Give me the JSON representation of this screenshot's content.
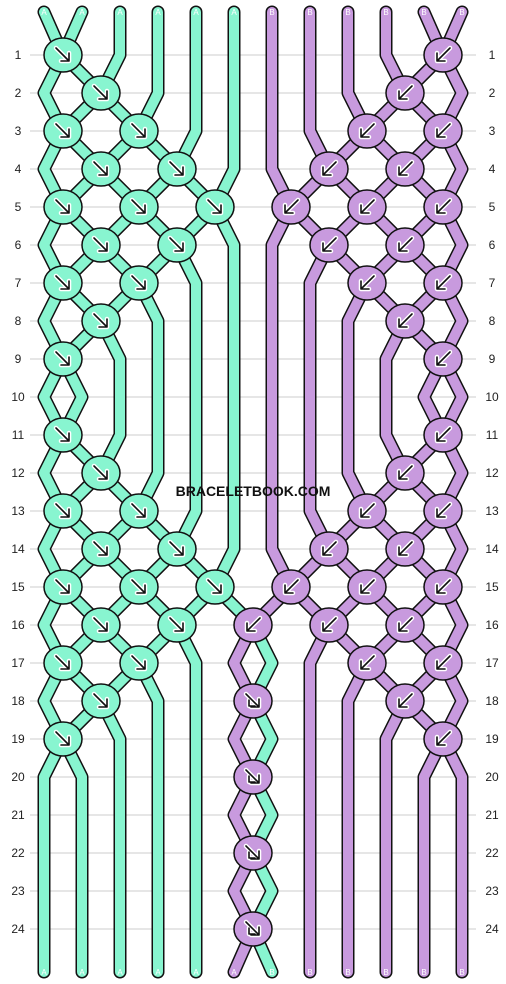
{
  "watermark": "BRACELETBOOK.COM",
  "row_labels": [
    "1",
    "2",
    "3",
    "4",
    "5",
    "6",
    "7",
    "8",
    "9",
    "10",
    "11",
    "12",
    "13",
    "14",
    "15",
    "16",
    "17",
    "18",
    "19",
    "20",
    "21",
    "22",
    "23",
    "24"
  ],
  "strings": {
    "top": [
      "A",
      "A",
      "A",
      "A",
      "A",
      "A",
      "B",
      "B",
      "B",
      "B",
      "B",
      "B"
    ],
    "bottom": [
      "A",
      "A",
      "A",
      "A",
      "A",
      "A",
      "B",
      "B",
      "B",
      "B",
      "B",
      "B"
    ]
  },
  "colors": {
    "A": "#88f5d0",
    "B": "#c89ade",
    "outline": "#111111",
    "gridline": "#cccccc"
  },
  "knot_types": {
    "f": "forward",
    "b": "backward",
    "fb": "forward-backward"
  },
  "knots": [
    {
      "row": 1,
      "pos": 0,
      "color": "A",
      "type": "f"
    },
    {
      "row": 1,
      "pos": 10,
      "color": "B",
      "type": "b"
    },
    {
      "row": 2,
      "pos": 1,
      "color": "A",
      "type": "f"
    },
    {
      "row": 2,
      "pos": 9,
      "color": "B",
      "type": "b"
    },
    {
      "row": 3,
      "pos": 0,
      "color": "A",
      "type": "f"
    },
    {
      "row": 3,
      "pos": 2,
      "color": "A",
      "type": "f"
    },
    {
      "row": 3,
      "pos": 8,
      "color": "B",
      "type": "b"
    },
    {
      "row": 3,
      "pos": 10,
      "color": "B",
      "type": "b"
    },
    {
      "row": 4,
      "pos": 1,
      "color": "A",
      "type": "f"
    },
    {
      "row": 4,
      "pos": 3,
      "color": "A",
      "type": "f"
    },
    {
      "row": 4,
      "pos": 7,
      "color": "B",
      "type": "b"
    },
    {
      "row": 4,
      "pos": 9,
      "color": "B",
      "type": "b"
    },
    {
      "row": 5,
      "pos": 0,
      "color": "A",
      "type": "f"
    },
    {
      "row": 5,
      "pos": 2,
      "color": "A",
      "type": "f"
    },
    {
      "row": 5,
      "pos": 4,
      "color": "A",
      "type": "f"
    },
    {
      "row": 5,
      "pos": 6,
      "color": "B",
      "type": "b"
    },
    {
      "row": 5,
      "pos": 8,
      "color": "B",
      "type": "b"
    },
    {
      "row": 5,
      "pos": 10,
      "color": "B",
      "type": "b"
    },
    {
      "row": 6,
      "pos": 1,
      "color": "A",
      "type": "f"
    },
    {
      "row": 6,
      "pos": 3,
      "color": "A",
      "type": "f"
    },
    {
      "row": 6,
      "pos": 7,
      "color": "B",
      "type": "b"
    },
    {
      "row": 6,
      "pos": 9,
      "color": "B",
      "type": "b"
    },
    {
      "row": 7,
      "pos": 0,
      "color": "A",
      "type": "f"
    },
    {
      "row": 7,
      "pos": 2,
      "color": "A",
      "type": "f"
    },
    {
      "row": 7,
      "pos": 8,
      "color": "B",
      "type": "b"
    },
    {
      "row": 7,
      "pos": 10,
      "color": "B",
      "type": "b"
    },
    {
      "row": 8,
      "pos": 1,
      "color": "A",
      "type": "f"
    },
    {
      "row": 8,
      "pos": 9,
      "color": "B",
      "type": "b"
    },
    {
      "row": 9,
      "pos": 0,
      "color": "A",
      "type": "f"
    },
    {
      "row": 9,
      "pos": 10,
      "color": "B",
      "type": "b"
    },
    {
      "row": 11,
      "pos": 0,
      "color": "A",
      "type": "f"
    },
    {
      "row": 11,
      "pos": 10,
      "color": "B",
      "type": "b"
    },
    {
      "row": 12,
      "pos": 1,
      "color": "A",
      "type": "f"
    },
    {
      "row": 12,
      "pos": 9,
      "color": "B",
      "type": "b"
    },
    {
      "row": 13,
      "pos": 0,
      "color": "A",
      "type": "f"
    },
    {
      "row": 13,
      "pos": 2,
      "color": "A",
      "type": "f"
    },
    {
      "row": 13,
      "pos": 8,
      "color": "B",
      "type": "b"
    },
    {
      "row": 13,
      "pos": 10,
      "color": "B",
      "type": "b"
    },
    {
      "row": 14,
      "pos": 1,
      "color": "A",
      "type": "f"
    },
    {
      "row": 14,
      "pos": 3,
      "color": "A",
      "type": "f"
    },
    {
      "row": 14,
      "pos": 7,
      "color": "B",
      "type": "b"
    },
    {
      "row": 14,
      "pos": 9,
      "color": "B",
      "type": "b"
    },
    {
      "row": 15,
      "pos": 0,
      "color": "A",
      "type": "f"
    },
    {
      "row": 15,
      "pos": 2,
      "color": "A",
      "type": "f"
    },
    {
      "row": 15,
      "pos": 4,
      "color": "A",
      "type": "f"
    },
    {
      "row": 15,
      "pos": 6,
      "color": "B",
      "type": "b"
    },
    {
      "row": 15,
      "pos": 8,
      "color": "B",
      "type": "b"
    },
    {
      "row": 15,
      "pos": 10,
      "color": "B",
      "type": "b"
    },
    {
      "row": 16,
      "pos": 1,
      "color": "A",
      "type": "f"
    },
    {
      "row": 16,
      "pos": 3,
      "color": "A",
      "type": "f"
    },
    {
      "row": 16,
      "pos": 5,
      "color": "B",
      "type": "b"
    },
    {
      "row": 16,
      "pos": 7,
      "color": "B",
      "type": "b"
    },
    {
      "row": 16,
      "pos": 9,
      "color": "B",
      "type": "b"
    },
    {
      "row": 17,
      "pos": 0,
      "color": "A",
      "type": "f"
    },
    {
      "row": 17,
      "pos": 2,
      "color": "A",
      "type": "f"
    },
    {
      "row": 17,
      "pos": 8,
      "color": "B",
      "type": "b"
    },
    {
      "row": 17,
      "pos": 10,
      "color": "B",
      "type": "b"
    },
    {
      "row": 18,
      "pos": 1,
      "color": "A",
      "type": "f"
    },
    {
      "row": 18,
      "pos": 5,
      "color": "B",
      "type": "fb"
    },
    {
      "row": 18,
      "pos": 9,
      "color": "B",
      "type": "b"
    },
    {
      "row": 19,
      "pos": 0,
      "color": "A",
      "type": "f"
    },
    {
      "row": 19,
      "pos": 10,
      "color": "B",
      "type": "b"
    },
    {
      "row": 20,
      "pos": 5,
      "color": "B",
      "type": "fb"
    },
    {
      "row": 22,
      "pos": 5,
      "color": "B",
      "type": "fb"
    },
    {
      "row": 24,
      "pos": 5,
      "color": "B",
      "type": "fb"
    }
  ]
}
